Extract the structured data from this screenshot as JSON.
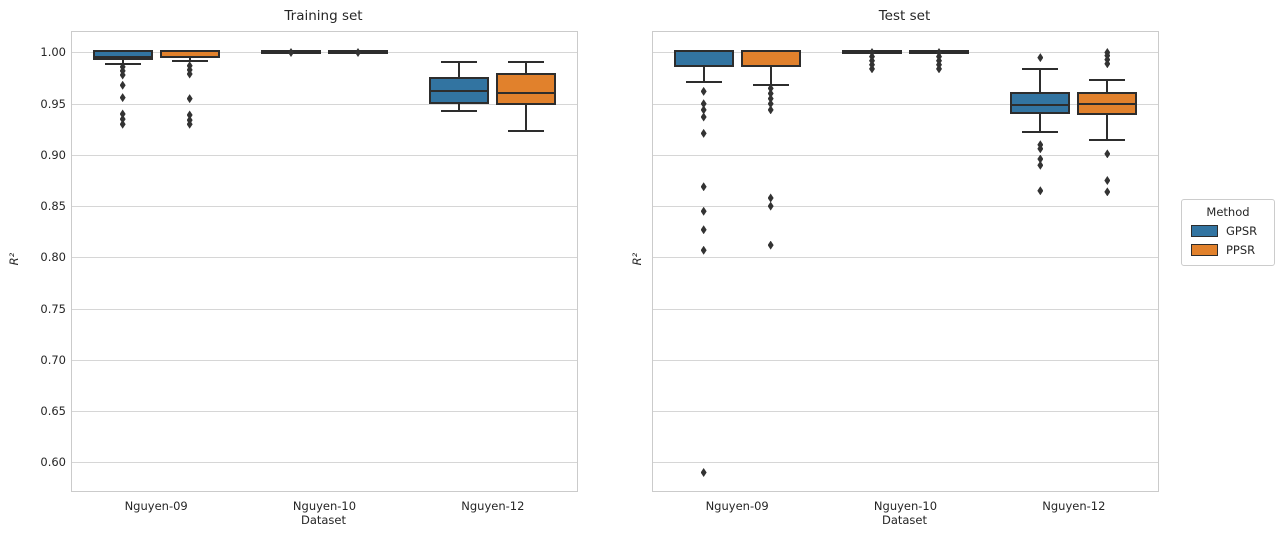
{
  "figure": {
    "background": "#ffffff",
    "grid_color": "#d6d6d6",
    "spine_color": "#cbcbcb",
    "text_color": "#262626",
    "line_color": "#2d2d2d"
  },
  "legend": {
    "title": "Method",
    "entries": [
      {
        "label": "GPSR",
        "color": "#3274A1",
        "swatch_icon": "blue-box-swatch"
      },
      {
        "label": "PPSR",
        "color": "#E1812C",
        "swatch_icon": "orange-box-swatch"
      }
    ]
  },
  "chart_data": [
    {
      "type": "boxplot",
      "title": "Training set",
      "xlabel": "Dataset",
      "ylabel": "R²",
      "ylim": [
        0.572,
        1.02
      ],
      "yticks": [
        1.0,
        0.95,
        0.9,
        0.85,
        0.8,
        0.75,
        0.7,
        0.65,
        0.6
      ],
      "show_ytick_labels": true,
      "grid": true,
      "categories": [
        "Nguyen-09",
        "Nguyen-10",
        "Nguyen-12"
      ],
      "series": [
        {
          "name": "GPSR",
          "color": "#3274A1",
          "boxes": [
            {
              "q1": 0.995,
              "median": 0.9955,
              "q3": 1.0,
              "whisker_low": 0.989,
              "whisker_high": 1.0,
              "outliers": [
                0.986,
                0.982,
                0.978,
                0.968,
                0.956,
                0.94,
                0.935,
                0.93
              ]
            },
            {
              "q1": 1.0,
              "median": 1.0,
              "q3": 1.0,
              "whisker_low": 1.0,
              "whisker_high": 1.0,
              "outliers": [
                1.0
              ]
            },
            {
              "q1": 0.952,
              "median": 0.962,
              "q3": 0.974,
              "whisker_low": 0.943,
              "whisker_high": 0.991,
              "outliers": []
            }
          ]
        },
        {
          "name": "PPSR",
          "color": "#E1812C",
          "boxes": [
            {
              "q1": 0.9965,
              "median": 0.997,
              "q3": 1.0,
              "whisker_low": 0.9915,
              "whisker_high": 1.0,
              "outliers": [
                0.987,
                0.983,
                0.979,
                0.955,
                0.939,
                0.934,
                0.93
              ]
            },
            {
              "q1": 1.0,
              "median": 1.0,
              "q3": 1.0,
              "whisker_low": 1.0,
              "whisker_high": 1.0,
              "outliers": [
                1.0
              ]
            },
            {
              "q1": 0.951,
              "median": 0.96,
              "q3": 0.978,
              "whisker_low": 0.923,
              "whisker_high": 0.991,
              "outliers": []
            }
          ]
        }
      ]
    },
    {
      "type": "boxplot",
      "title": "Test set",
      "xlabel": "Dataset",
      "ylabel": "R²",
      "ylim": [
        0.572,
        1.02
      ],
      "yticks": [
        1.0,
        0.95,
        0.9,
        0.85,
        0.8,
        0.75,
        0.7,
        0.65,
        0.6
      ],
      "show_ytick_labels": false,
      "grid": true,
      "categories": [
        "Nguyen-09",
        "Nguyen-10",
        "Nguyen-12"
      ],
      "series": [
        {
          "name": "GPSR",
          "color": "#3274A1",
          "boxes": [
            {
              "q1": 0.988,
              "median": 0.9995,
              "q3": 1.0,
              "whisker_low": 0.971,
              "whisker_high": 1.0,
              "outliers": [
                0.962,
                0.95,
                0.944,
                0.937,
                0.921,
                0.869,
                0.845,
                0.827,
                0.807,
                0.59
              ]
            },
            {
              "q1": 1.0,
              "median": 1.0,
              "q3": 1.0,
              "whisker_low": 1.0,
              "whisker_high": 1.0,
              "outliers": [
                1.0,
                0.996,
                0.992,
                0.988,
                0.984
              ]
            },
            {
              "q1": 0.942,
              "median": 0.949,
              "q3": 0.959,
              "whisker_low": 0.922,
              "whisker_high": 0.984,
              "outliers": [
                0.995,
                0.91,
                0.906,
                0.896,
                0.89,
                0.865
              ]
            }
          ]
        },
        {
          "name": "PPSR",
          "color": "#E1812C",
          "boxes": [
            {
              "q1": 0.988,
              "median": 0.9995,
              "q3": 1.0,
              "whisker_low": 0.968,
              "whisker_high": 1.0,
              "outliers": [
                0.965,
                0.96,
                0.955,
                0.95,
                0.944,
                0.858,
                0.85,
                0.812
              ]
            },
            {
              "q1": 1.0,
              "median": 1.0,
              "q3": 1.0,
              "whisker_low": 1.0,
              "whisker_high": 1.0,
              "outliers": [
                1.0,
                0.996,
                0.992,
                0.988,
                0.984
              ]
            },
            {
              "q1": 0.941,
              "median": 0.95,
              "q3": 0.959,
              "whisker_low": 0.915,
              "whisker_high": 0.973,
              "outliers": [
                1.0,
                0.997,
                0.993,
                0.989,
                0.901,
                0.875,
                0.864
              ]
            }
          ]
        }
      ]
    }
  ]
}
